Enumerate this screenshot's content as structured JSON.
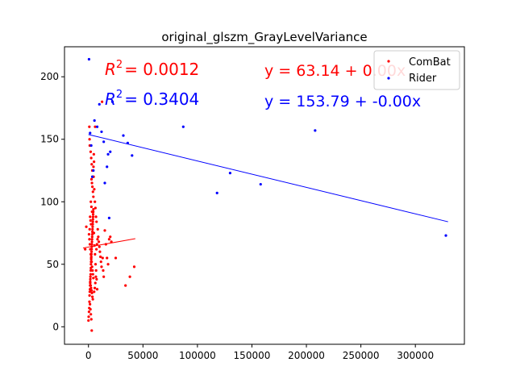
{
  "chart_data": {
    "type": "scatter",
    "title": "original_glszm_GrayLevelVariance",
    "xlabel": "",
    "ylabel": "",
    "xlim": [
      -22000,
      345000
    ],
    "ylim": [
      -14,
      224
    ],
    "xticks": [
      0,
      50000,
      100000,
      150000,
      200000,
      250000,
      300000
    ],
    "xtick_labels": [
      "0",
      "50000",
      "100000",
      "150000",
      "200000",
      "250000",
      "300000"
    ],
    "yticks": [
      0,
      50,
      100,
      150,
      200
    ],
    "ytick_labels": [
      "0",
      "50",
      "100",
      "150",
      "200"
    ],
    "grid": false,
    "legend_position": "top-right",
    "series": [
      {
        "name": "ComBat",
        "color": "#ff0000",
        "points": [
          [
            -3000,
            62
          ],
          [
            -2000,
            80
          ],
          [
            0,
            5
          ],
          [
            200,
            8
          ],
          [
            500,
            12
          ],
          [
            700,
            15
          ],
          [
            900,
            20
          ],
          [
            1000,
            25
          ],
          [
            1200,
            28
          ],
          [
            1400,
            30
          ],
          [
            1500,
            33
          ],
          [
            1600,
            35
          ],
          [
            1700,
            38
          ],
          [
            1800,
            40
          ],
          [
            2000,
            42
          ],
          [
            2100,
            45
          ],
          [
            2200,
            47
          ],
          [
            2300,
            50
          ],
          [
            2400,
            52
          ],
          [
            2500,
            54
          ],
          [
            2600,
            56
          ],
          [
            2700,
            58
          ],
          [
            2800,
            60
          ],
          [
            2900,
            62
          ],
          [
            3000,
            64
          ],
          [
            3100,
            66
          ],
          [
            3200,
            68
          ],
          [
            3300,
            70
          ],
          [
            3400,
            72
          ],
          [
            3500,
            74
          ],
          [
            3600,
            76
          ],
          [
            3700,
            78
          ],
          [
            3800,
            80
          ],
          [
            3900,
            82
          ],
          [
            4000,
            84
          ],
          [
            4100,
            86
          ],
          [
            4200,
            88
          ],
          [
            4300,
            90
          ],
          [
            4400,
            92
          ],
          [
            4500,
            94
          ],
          [
            1000,
            150
          ],
          [
            1200,
            145
          ],
          [
            800,
            160
          ],
          [
            2000,
            140
          ],
          [
            2500,
            135
          ],
          [
            3000,
            130
          ],
          [
            3500,
            125
          ],
          [
            4000,
            120
          ],
          [
            2800,
            118
          ],
          [
            3200,
            115
          ],
          [
            3600,
            112
          ],
          [
            4100,
            108
          ],
          [
            4500,
            104
          ],
          [
            2200,
            100
          ],
          [
            2700,
            96
          ],
          [
            3300,
            92
          ],
          [
            1500,
            88
          ],
          [
            1900,
            85
          ],
          [
            2400,
            82
          ],
          [
            1100,
            78
          ],
          [
            500,
            74
          ],
          [
            900,
            70
          ],
          [
            1300,
            66
          ],
          [
            1700,
            62
          ],
          [
            2100,
            58
          ],
          [
            2500,
            55
          ],
          [
            2900,
            52
          ],
          [
            3300,
            48
          ],
          [
            3700,
            45
          ],
          [
            4100,
            42
          ],
          [
            4500,
            39
          ],
          [
            1600,
            36
          ],
          [
            2000,
            33
          ],
          [
            2400,
            31
          ],
          [
            2800,
            29
          ],
          [
            3200,
            27
          ],
          [
            3600,
            24
          ],
          [
            4000,
            22
          ],
          [
            1400,
            18
          ],
          [
            1800,
            14
          ],
          [
            2200,
            10
          ],
          [
            2600,
            6
          ],
          [
            3000,
            -3
          ],
          [
            5000,
            75
          ],
          [
            5500,
            65
          ],
          [
            6000,
            58
          ],
          [
            6500,
            50
          ],
          [
            7000,
            45
          ],
          [
            7500,
            38
          ],
          [
            8000,
            30
          ],
          [
            8500,
            78
          ],
          [
            9000,
            72
          ],
          [
            9500,
            68
          ],
          [
            10000,
            64
          ],
          [
            10500,
            60
          ],
          [
            11000,
            56
          ],
          [
            11500,
            52
          ],
          [
            12000,
            48
          ],
          [
            12500,
            180
          ],
          [
            13000,
            55
          ],
          [
            13500,
            45
          ],
          [
            14000,
            40
          ],
          [
            15000,
            77
          ],
          [
            16000,
            66
          ],
          [
            17000,
            55
          ],
          [
            18000,
            50
          ],
          [
            19000,
            70
          ],
          [
            20000,
            72
          ],
          [
            21000,
            68
          ],
          [
            25000,
            55
          ],
          [
            34000,
            33
          ],
          [
            38000,
            40
          ],
          [
            42000,
            48
          ],
          [
            5200,
            28
          ],
          [
            5800,
            31
          ],
          [
            6300,
            35
          ],
          [
            6800,
            40
          ],
          [
            7300,
            62
          ],
          [
            7800,
            66
          ],
          [
            8300,
            70
          ],
          [
            4700,
            120
          ],
          [
            5300,
            110
          ],
          [
            5900,
            100
          ],
          [
            6400,
            95
          ],
          [
            6900,
            88
          ],
          [
            7400,
            84
          ],
          [
            4600,
            128
          ],
          [
            5100,
            132
          ],
          [
            4900,
            138
          ],
          [
            6100,
            160
          ]
        ]
      },
      {
        "name": "Rider",
        "color": "#0000ff",
        "points": [
          [
            500,
            214
          ],
          [
            1500,
            155
          ],
          [
            2500,
            145
          ],
          [
            3500,
            120
          ],
          [
            4500,
            125
          ],
          [
            5500,
            165
          ],
          [
            8000,
            160
          ],
          [
            10000,
            178
          ],
          [
            12000,
            156
          ],
          [
            14000,
            148
          ],
          [
            15000,
            115
          ],
          [
            17000,
            128
          ],
          [
            18000,
            138
          ],
          [
            19000,
            87
          ],
          [
            20000,
            140
          ],
          [
            22000,
            180
          ],
          [
            32000,
            153
          ],
          [
            36000,
            147
          ],
          [
            40000,
            137
          ],
          [
            87000,
            160
          ],
          [
            118000,
            107
          ],
          [
            130000,
            123
          ],
          [
            158000,
            114
          ],
          [
            208000,
            157
          ],
          [
            328000,
            73
          ]
        ]
      }
    ],
    "fit_lines": [
      {
        "series": "ComBat",
        "x": [
          -5000,
          43000
        ],
        "y": [
          63,
          70.5
        ],
        "r2_label": "R^2 = 0.0012",
        "equation": "y = 63.14 + 0.00x"
      },
      {
        "series": "Rider",
        "x": [
          0,
          330000
        ],
        "y": [
          153.8,
          84.0
        ],
        "r2_label": "R^2 = 0.3404",
        "equation": "y = 153.79 + -0.00x"
      }
    ]
  },
  "annotations": {
    "r2_combat_prefix": "R",
    "r2_combat_value": "= 0.0012",
    "r2_rider_prefix": "R",
    "r2_rider_value": "= 0.3404",
    "r2_superscript": "2",
    "eq_combat": "y = 63.14 + 0.00x",
    "eq_rider": "y = 153.79 + -0.00x"
  }
}
